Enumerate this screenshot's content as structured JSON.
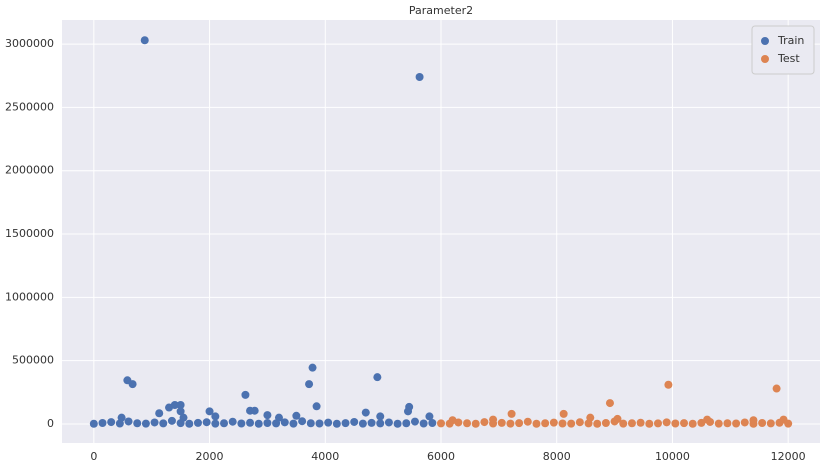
{
  "chart_data": {
    "type": "scatter",
    "title": "Parameter2",
    "xlim": [
      -550,
      12550
    ],
    "ylim": [
      -150000,
      3190000
    ],
    "xticks": [
      0,
      2000,
      4000,
      6000,
      8000,
      10000,
      12000
    ],
    "yticks": [
      0,
      500000,
      1000000,
      1500000,
      2000000,
      2500000,
      3000000
    ],
    "grid": true,
    "legend": "upper right",
    "series": [
      {
        "name": "Train",
        "color": "#4c72b0",
        "x": [
          0,
          150,
          300,
          450,
          600,
          750,
          900,
          1050,
          1200,
          1350,
          1500,
          1650,
          1800,
          1950,
          2100,
          2250,
          2400,
          2550,
          2700,
          2850,
          3000,
          3150,
          3300,
          3450,
          3600,
          3750,
          3900,
          4050,
          4200,
          4350,
          4500,
          4650,
          4800,
          4950,
          5100,
          5250,
          5400,
          5550,
          5700,
          5850,
          880,
          5630,
          580,
          670,
          3780,
          3720,
          4900,
          2620,
          1400,
          1500,
          1300,
          3850,
          1130,
          2000,
          2700,
          2780,
          5450,
          5430,
          4700,
          2100,
          3000,
          3500,
          480,
          1550,
          4950,
          5800,
          3200,
          1500
        ],
        "values": [
          2000,
          8000,
          15000,
          4000,
          20000,
          6000,
          3000,
          12000,
          5000,
          25000,
          7000,
          2000,
          9000,
          14000,
          3000,
          6000,
          18000,
          4000,
          10000,
          2000,
          8000,
          5000,
          13000,
          3000,
          22000,
          6000,
          4000,
          11000,
          2000,
          7000,
          16000,
          3000,
          9000,
          5000,
          12000,
          2000,
          6000,
          19000,
          4000,
          8000,
          3030000,
          2740000,
          345000,
          315000,
          445000,
          315000,
          370000,
          230000,
          150000,
          150000,
          130000,
          140000,
          85000,
          100000,
          105000,
          105000,
          135000,
          100000,
          90000,
          60000,
          70000,
          65000,
          50000,
          50000,
          60000,
          60000,
          50000,
          100000
        ]
      },
      {
        "name": "Test",
        "color": "#dd8452",
        "x": [
          6000,
          6150,
          6300,
          6450,
          6600,
          6750,
          6900,
          7050,
          7200,
          7350,
          7500,
          7650,
          7800,
          7950,
          8100,
          8250,
          8400,
          8550,
          8700,
          8850,
          9000,
          9150,
          9300,
          9450,
          9600,
          9750,
          9900,
          10050,
          10200,
          10350,
          10500,
          10650,
          10800,
          10950,
          11100,
          11250,
          11400,
          11550,
          11700,
          11850,
          12000,
          9930,
          11800,
          8920,
          7220,
          8120,
          8580,
          9050,
          10600,
          11400,
          11920,
          6200,
          6900
        ],
        "values": [
          5000,
          3000,
          12000,
          6000,
          2000,
          15000,
          4000,
          9000,
          3000,
          7000,
          18000,
          2000,
          6000,
          11000,
          4000,
          3000,
          14000,
          5000,
          2000,
          8000,
          20000,
          3000,
          6000,
          10000,
          2000,
          5000,
          13000,
          4000,
          7000,
          2000,
          9000,
          16000,
          3000,
          6000,
          4000,
          12000,
          2000,
          8000,
          5000,
          10000,
          3000,
          310000,
          280000,
          165000,
          80000,
          80000,
          50000,
          40000,
          35000,
          30000,
          35000,
          30000,
          35000
        ]
      }
    ]
  }
}
